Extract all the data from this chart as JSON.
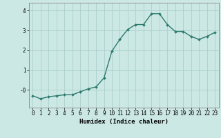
{
  "x": [
    0,
    1,
    2,
    3,
    4,
    5,
    6,
    7,
    8,
    9,
    10,
    11,
    12,
    13,
    14,
    15,
    16,
    17,
    18,
    19,
    20,
    21,
    22,
    23
  ],
  "y": [
    -0.3,
    -0.45,
    -0.35,
    -0.3,
    -0.25,
    -0.25,
    -0.1,
    0.05,
    0.15,
    0.6,
    1.95,
    2.55,
    3.05,
    3.3,
    3.3,
    3.85,
    3.85,
    3.3,
    2.95,
    2.95,
    2.7,
    2.55,
    2.7,
    2.9
  ],
  "line_color": "#2d7a6e",
  "marker": "D",
  "marker_size": 2.0,
  "line_width": 1.0,
  "bg_color": "#cce8e4",
  "grid_color": "#aacfcb",
  "xlabel": "Humidex (Indice chaleur)",
  "ylabel": "",
  "xlim": [
    -0.5,
    23.5
  ],
  "ylim": [
    -0.9,
    4.4
  ],
  "ytick_labels": [
    "-0",
    "1",
    "2",
    "3",
    "4"
  ],
  "ytick_vals": [
    0,
    1,
    2,
    3,
    4
  ],
  "xtick_labels": [
    "0",
    "1",
    "2",
    "3",
    "4",
    "5",
    "6",
    "7",
    "8",
    "9",
    "10",
    "11",
    "12",
    "13",
    "14",
    "15",
    "16",
    "17",
    "18",
    "19",
    "20",
    "21",
    "22",
    "23"
  ],
  "label_fontsize": 6.5,
  "tick_fontsize": 5.5
}
